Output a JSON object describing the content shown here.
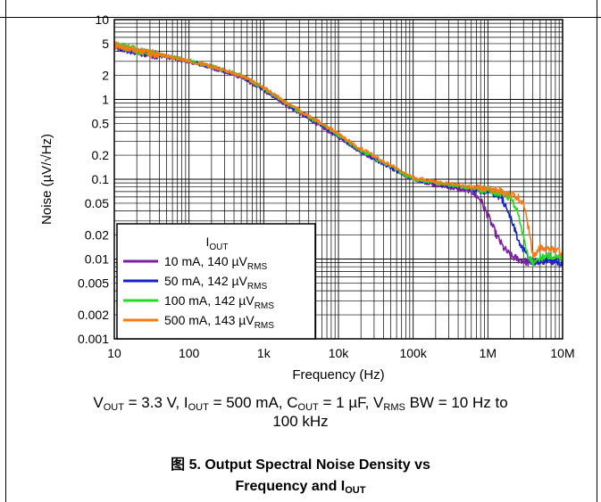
{
  "chart_data": {
    "type": "line",
    "xlabel": "Frequency (Hz)",
    "ylabel": "Noise (µV/√Hz)",
    "xscale": "log",
    "yscale": "log",
    "xlim": [
      10,
      10000000
    ],
    "ylim": [
      0.001,
      10
    ],
    "x_ticks": [
      "10",
      "100",
      "1k",
      "10k",
      "100k",
      "1M",
      "10M"
    ],
    "y_ticks": [
      "10",
      "5",
      "2",
      "1",
      "0.5",
      "0.2",
      "0.1",
      "0.05",
      "0.02",
      "0.01",
      "0.005",
      "0.002",
      "0.001"
    ],
    "y_tick_values": [
      10,
      5,
      2,
      1,
      0.5,
      0.2,
      0.1,
      0.05,
      0.02,
      0.01,
      0.005,
      0.002,
      0.001
    ],
    "grid": true,
    "legend": {
      "title_main": "I",
      "title_sub": "OUT",
      "placement": "lower-left",
      "entries": [
        {
          "text": "10 mA, 140 µV",
          "sub": "RMS"
        },
        {
          "text": "50 mA, 142 µV",
          "sub": "RMS"
        },
        {
          "text": "100 mA, 142 µV",
          "sub": "RMS"
        },
        {
          "text": "500 mA, 143 µV",
          "sub": "RMS"
        }
      ]
    },
    "series": [
      {
        "name": "10 mA, 140 µVRMS",
        "color": "#7B1FA2",
        "x": [
          10,
          20,
          50,
          100,
          200,
          500,
          1000,
          2000,
          5000,
          10000,
          20000,
          50000,
          100000,
          200000,
          400000,
          600000,
          800000,
          1000000,
          1300000,
          1600000,
          2000000,
          2500000,
          3000000,
          3500000,
          4000000,
          5000000,
          7000000,
          10000000
        ],
        "y": [
          4.5,
          3.9,
          3.4,
          3.0,
          2.5,
          1.9,
          1.3,
          0.85,
          0.5,
          0.34,
          0.22,
          0.14,
          0.1,
          0.085,
          0.075,
          0.07,
          0.055,
          0.035,
          0.02,
          0.014,
          0.011,
          0.01,
          0.0095,
          0.009,
          0.009,
          0.0095,
          0.0095,
          0.0095
        ]
      },
      {
        "name": "50 mA, 142 µVRMS",
        "color": "#1122CC",
        "x": [
          10,
          20,
          50,
          100,
          200,
          500,
          1000,
          2000,
          5000,
          10000,
          20000,
          50000,
          100000,
          200000,
          400000,
          600000,
          1000000,
          1500000,
          2000000,
          2500000,
          3000000,
          3500000,
          4000000,
          5000000,
          7000000,
          10000000
        ],
        "y": [
          4.6,
          4.0,
          3.45,
          3.0,
          2.55,
          1.95,
          1.35,
          0.88,
          0.52,
          0.35,
          0.22,
          0.14,
          0.1,
          0.088,
          0.08,
          0.075,
          0.07,
          0.06,
          0.035,
          0.018,
          0.013,
          0.01,
          0.009,
          0.0095,
          0.0095,
          0.009
        ]
      },
      {
        "name": "100 mA, 142 µVRMS",
        "color": "#22DD22",
        "x": [
          10,
          20,
          50,
          100,
          200,
          500,
          1000,
          2000,
          5000,
          10000,
          20000,
          50000,
          100000,
          200000,
          400000,
          600000,
          1000000,
          1500000,
          2000000,
          2500000,
          3000000,
          3500000,
          4000000,
          5000000,
          7000000,
          10000000
        ],
        "y": [
          5.0,
          4.1,
          3.5,
          3.05,
          2.6,
          2.0,
          1.38,
          0.9,
          0.53,
          0.36,
          0.23,
          0.145,
          0.1,
          0.09,
          0.082,
          0.078,
          0.072,
          0.065,
          0.06,
          0.04,
          0.018,
          0.011,
          0.009,
          0.0105,
          0.011,
          0.01
        ]
      },
      {
        "name": "500 mA, 143 µVRMS",
        "color": "#FF7711",
        "x": [
          10,
          20,
          50,
          100,
          200,
          500,
          1000,
          2000,
          5000,
          10000,
          20000,
          50000,
          100000,
          200000,
          400000,
          600000,
          1000000,
          1500000,
          2000000,
          2500000,
          3000000,
          3500000,
          4000000,
          5000000,
          7000000,
          10000000
        ],
        "y": [
          4.8,
          4.1,
          3.5,
          3.05,
          2.6,
          2.0,
          1.4,
          0.92,
          0.55,
          0.37,
          0.24,
          0.15,
          0.105,
          0.092,
          0.085,
          0.08,
          0.075,
          0.07,
          0.065,
          0.06,
          0.05,
          0.025,
          0.011,
          0.014,
          0.013,
          0.012
        ]
      }
    ]
  },
  "caption": {
    "p1": "V",
    "s1": "OUT",
    "p2": " = 3.3 V, I",
    "s2": "OUT",
    "p3": " = 500 mA, C",
    "s3": "OUT",
    "p4": " = 1 µF, V",
    "s4": "RMS",
    "p5": " BW = 10 Hz to",
    "line2": "100 kHz"
  },
  "figure_title": {
    "line1": "图 5. Output Spectral Noise Density vs",
    "line2_main": "Frequency and I",
    "line2_sub": "OUT"
  }
}
